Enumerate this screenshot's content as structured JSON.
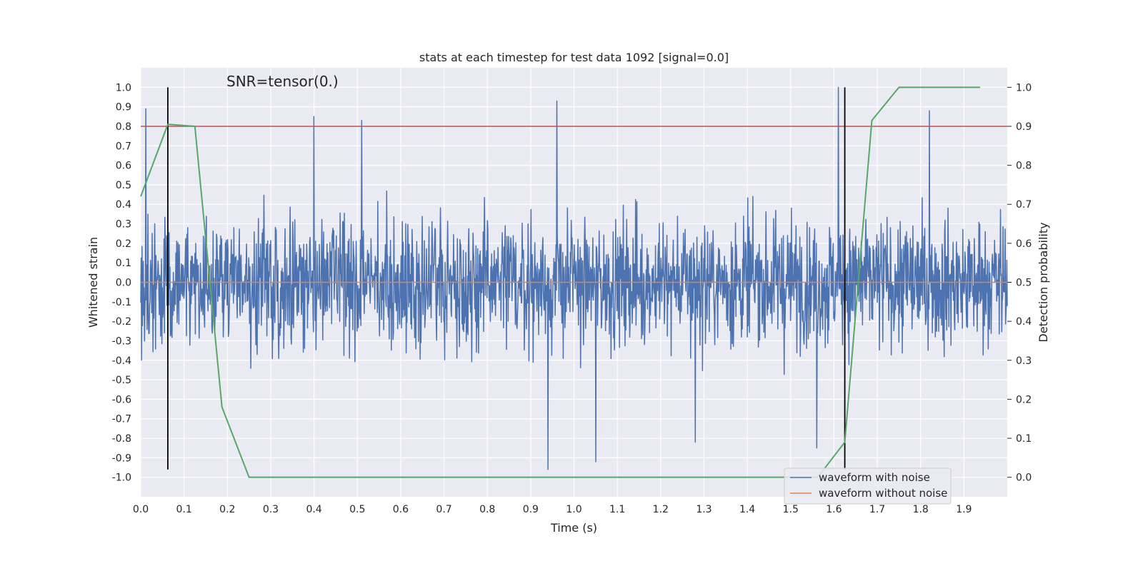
{
  "chart_data": {
    "type": "line",
    "title": "stats at each timestep for test data 1092 [signal=0.0]",
    "annotation": "SNR=tensor(0.)",
    "xlabel": "Time (s)",
    "ylabel": "Whitened strain",
    "y2label": "Detection probability",
    "xlim": [
      0.0,
      2.0
    ],
    "ylim": [
      -1.1,
      1.1
    ],
    "y2lim": [
      -0.05,
      1.05
    ],
    "x_ticks": [
      "0.0",
      "0.1",
      "0.2",
      "0.3",
      "0.4",
      "0.5",
      "0.6",
      "0.7",
      "0.8",
      "0.9",
      "1.0",
      "1.1",
      "1.2",
      "1.3",
      "1.4",
      "1.5",
      "1.6",
      "1.7",
      "1.8",
      "1.9"
    ],
    "y_ticks": [
      "1.0",
      "0.9",
      "0.8",
      "0.7",
      "0.6",
      "0.5",
      "0.4",
      "0.3",
      "0.2",
      "0.1",
      "0.0",
      "-0.1",
      "-0.2",
      "-0.3",
      "-0.4",
      "-0.5",
      "-0.6",
      "-0.7",
      "-0.8",
      "-0.9",
      "-1.0"
    ],
    "y2_ticks": [
      "1.0",
      "0.9",
      "0.8",
      "0.7",
      "0.6",
      "0.5",
      "0.4",
      "0.3",
      "0.2",
      "0.1",
      "0.0"
    ],
    "grid": true,
    "legend_position": "bottom-right",
    "threshold_y": 0.8,
    "vertical_lines_x": [
      0.0625,
      1.625
    ],
    "vertical_lines_ylim": [
      -0.96,
      1.0
    ],
    "series": [
      {
        "name": "waveform with noise",
        "color": "#4c72b0",
        "axis": "left",
        "n_samples": 2048,
        "x_range": [
          0.0,
          2.0
        ],
        "amplitude_range": [
          -1.0,
          1.0
        ],
        "peaks": [
          {
            "x": 0.012,
            "y": 0.89
          },
          {
            "x": 0.4,
            "y": 0.85
          },
          {
            "x": 0.51,
            "y": 0.83
          },
          {
            "x": 0.96,
            "y": 0.93
          },
          {
            "x": 1.61,
            "y": 1.0
          },
          {
            "x": 1.82,
            "y": 0.88
          },
          {
            "x": 0.94,
            "y": -0.96
          },
          {
            "x": 1.05,
            "y": -0.92
          },
          {
            "x": 1.28,
            "y": -0.82
          },
          {
            "x": 1.56,
            "y": -0.85
          }
        ]
      },
      {
        "name": "waveform without noise",
        "color": "#dd8452",
        "axis": "left",
        "x": [
          0.0,
          2.0
        ],
        "y": [
          0.0,
          0.0
        ]
      },
      {
        "name": "",
        "color": "#55a868",
        "axis": "right",
        "x": [
          0.0,
          0.0625,
          0.125,
          0.1875,
          0.25,
          0.3125,
          1.5,
          1.5625,
          1.625,
          1.6875,
          1.75,
          1.8125,
          1.875,
          1.9375
        ],
        "y": [
          0.72,
          0.905,
          0.9,
          0.18,
          0.0,
          0.0,
          0.0,
          0.0,
          0.09,
          0.915,
          1.0,
          1.0,
          1.0,
          1.0
        ]
      }
    ],
    "colors": {
      "background": "#eaeaf2",
      "grid": "#ffffff",
      "threshold": "#c44e52",
      "vertical_lines": "#000000"
    }
  }
}
